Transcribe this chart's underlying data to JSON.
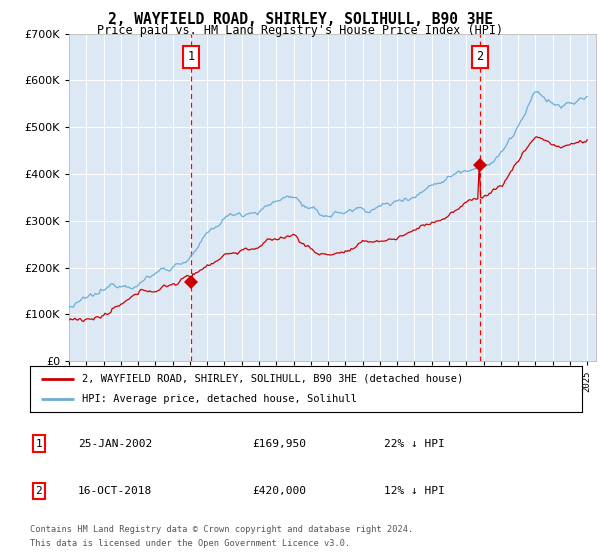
{
  "title": "2, WAYFIELD ROAD, SHIRLEY, SOLIHULL, B90 3HE",
  "subtitle": "Price paid vs. HM Land Registry's House Price Index (HPI)",
  "legend_line1": "2, WAYFIELD ROAD, SHIRLEY, SOLIHULL, B90 3HE (detached house)",
  "legend_line2": "HPI: Average price, detached house, Solihull",
  "footnote1": "Contains HM Land Registry data © Crown copyright and database right 2024.",
  "footnote2": "This data is licensed under the Open Government Licence v3.0.",
  "ylim": [
    0,
    700000
  ],
  "xlim_start": 1995.0,
  "xlim_end": 2025.5,
  "plot_bg_color": "#dce9f5",
  "hpi_line_color": "#6baed6",
  "price_line_color": "#cc0000",
  "marker1_price": 169950,
  "marker2_price": 420000,
  "marker1_year": 2002.07,
  "marker2_year": 2018.79,
  "t1_date": "25-JAN-2002",
  "t1_price_str": "£169,950",
  "t1_hpi_str": "22% ↓ HPI",
  "t2_date": "16-OCT-2018",
  "t2_price_str": "£420,000",
  "t2_hpi_str": "12% ↓ HPI"
}
